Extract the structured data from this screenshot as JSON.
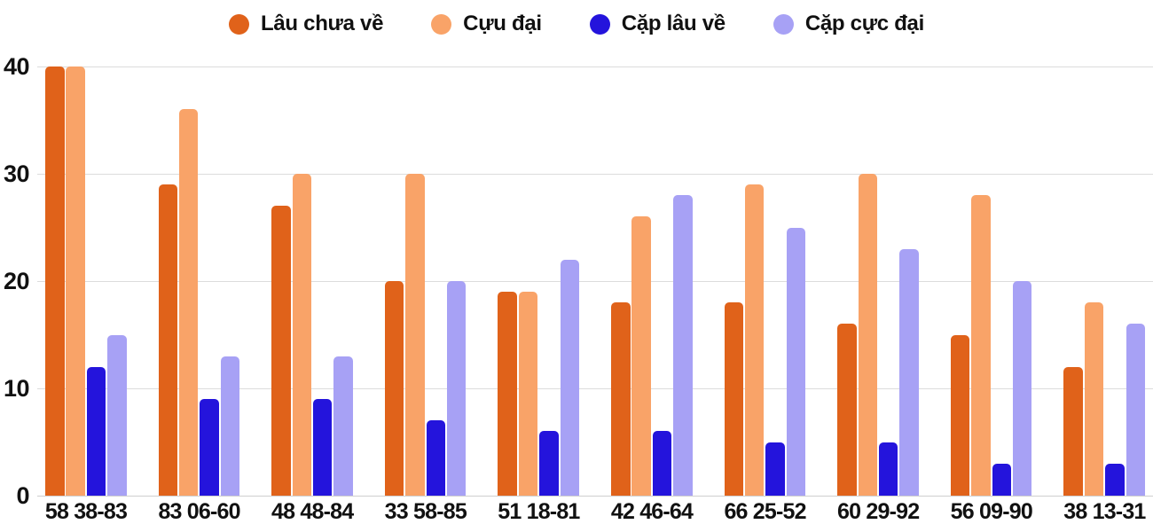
{
  "chart_data": {
    "type": "bar",
    "title": "",
    "xlabel": "",
    "ylabel": "",
    "categories": [
      "58 38-83",
      "83 06-60",
      "48 48-84",
      "33 58-85",
      "51 18-81",
      "42 46-64",
      "66 25-52",
      "60 29-92",
      "56 09-90",
      "38 13-31"
    ],
    "series": [
      {
        "name": "Lâu chưa về",
        "color": "#E0621A",
        "values": [
          40,
          29,
          27,
          20,
          19,
          18,
          18,
          16,
          15,
          12
        ]
      },
      {
        "name": "Cựu đại",
        "color": "#F9A368",
        "values": [
          40,
          36,
          30,
          30,
          19,
          26,
          29,
          30,
          28,
          18
        ]
      },
      {
        "name": "Cặp lâu về",
        "color": "#2414DC",
        "values": [
          12,
          9,
          9,
          7,
          6,
          6,
          5,
          5,
          3,
          3
        ]
      },
      {
        "name": "Cặp cực đại",
        "color": "#A7A1F5",
        "values": [
          15,
          13,
          13,
          20,
          22,
          28,
          25,
          23,
          20,
          16
        ]
      }
    ],
    "ylim": [
      0,
      40
    ],
    "yticks": [
      0,
      10,
      20,
      30,
      40
    ],
    "grid": true,
    "legend_position": "top",
    "colors": {
      "text": "#111111",
      "gridline": "#dcdcdc",
      "background": "#ffffff"
    }
  }
}
